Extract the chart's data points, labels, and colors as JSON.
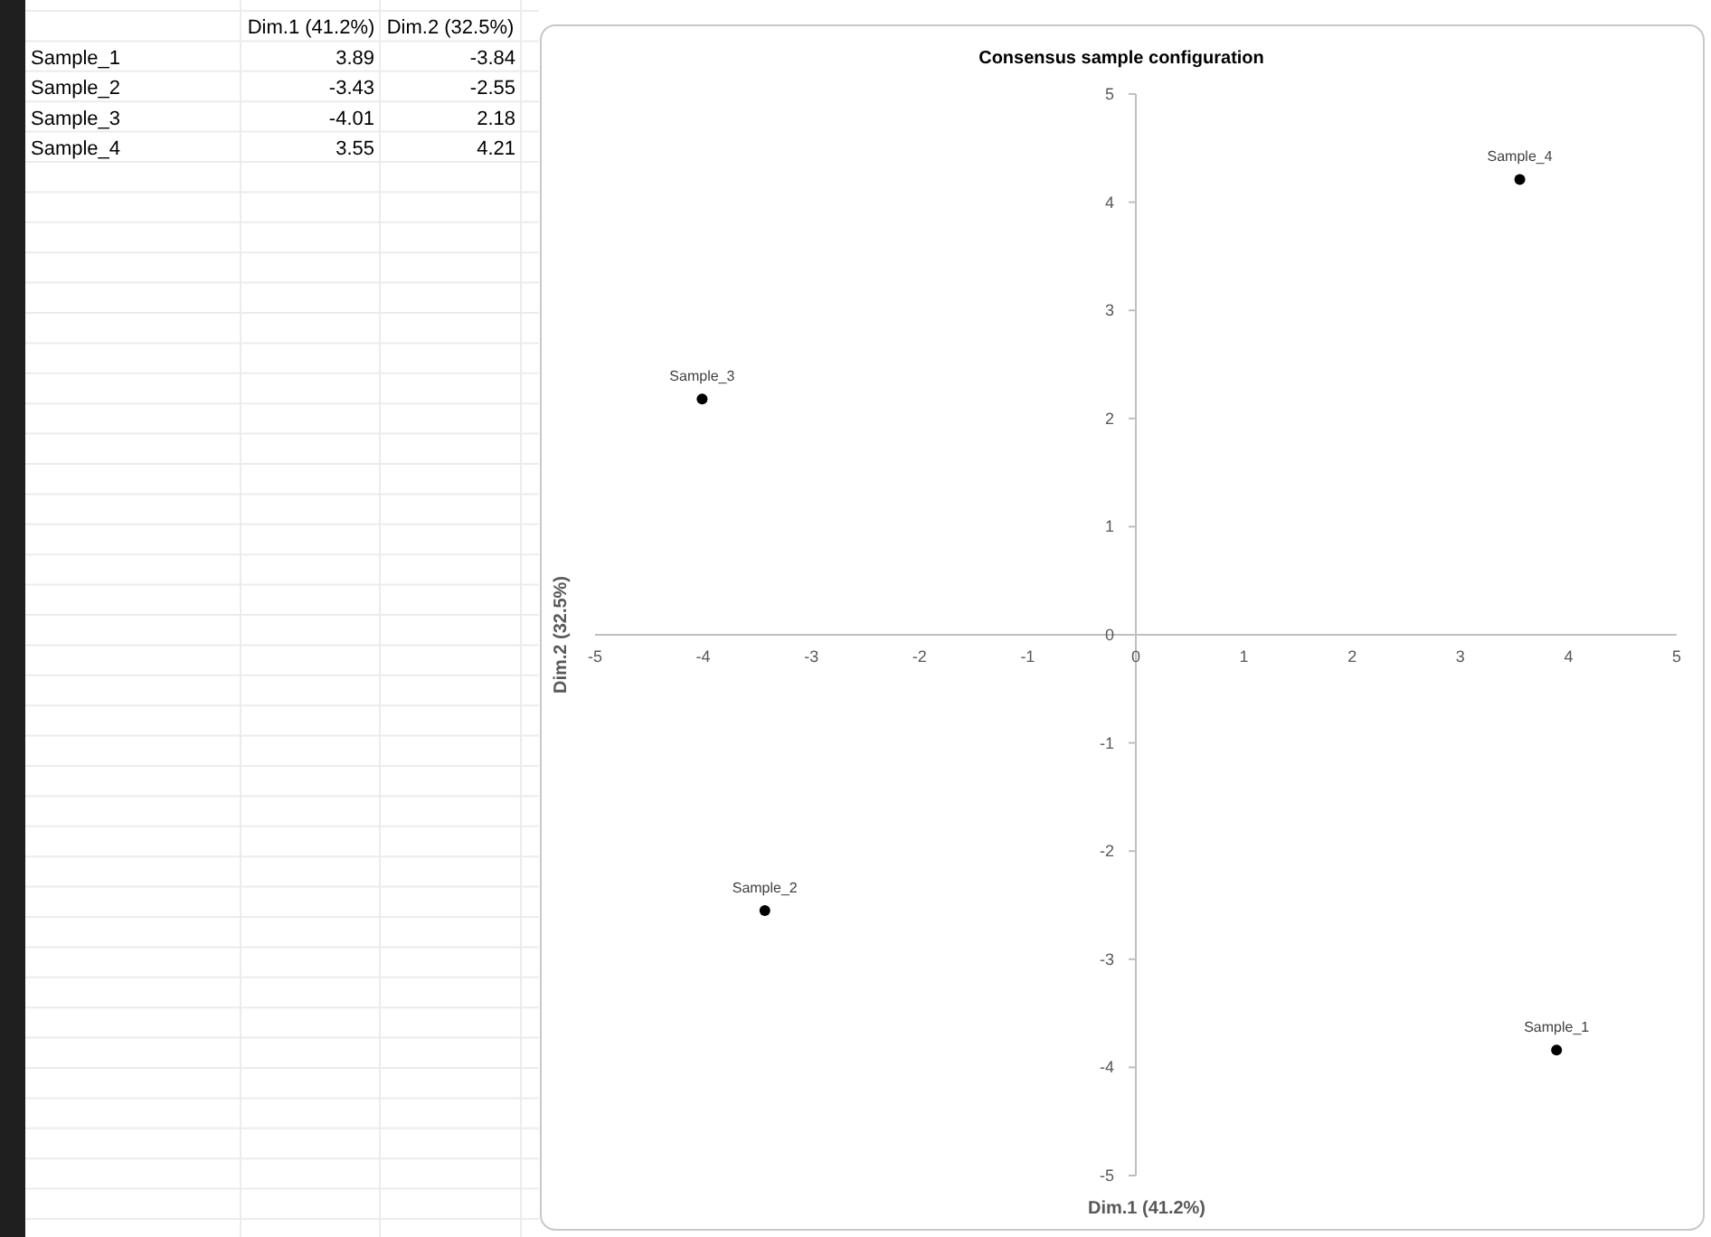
{
  "chart_data": {
    "type": "scatter",
    "title": "Consensus sample configuration",
    "xlabel": "Dim.1 (41.2%)",
    "ylabel": "Dim.2 (32.5%)",
    "xlim": [
      -5,
      5
    ],
    "xticks": [
      -5,
      -4,
      -3,
      -2,
      -1,
      0,
      1,
      2,
      3,
      4,
      5
    ],
    "ylim": [
      -5,
      5
    ],
    "yticks": [
      -5,
      -4,
      -3,
      -2,
      -1,
      0,
      1,
      2,
      3,
      4,
      5
    ],
    "grid": false,
    "legend": false,
    "marker": "circle",
    "annotations": [
      "3.89",
      "-3.84",
      "-3.43",
      "-2.55",
      "-4.01",
      "2.18",
      "3.55",
      "4.21"
    ],
    "series": [
      {
        "name": "Sample_1",
        "color": "#000000",
        "x": [
          3.89
        ],
        "values": [
          -3.84
        ]
      },
      {
        "name": "Sample_2",
        "color": "#000000",
        "x": [
          -3.43
        ],
        "values": [
          -2.55
        ]
      },
      {
        "name": "Sample_3",
        "color": "#000000",
        "x": [
          -4.01
        ],
        "values": [
          2.18
        ]
      },
      {
        "name": "Sample_4",
        "color": "#000000",
        "x": [
          3.55
        ],
        "values": [
          4.21
        ]
      }
    ]
  }
}
